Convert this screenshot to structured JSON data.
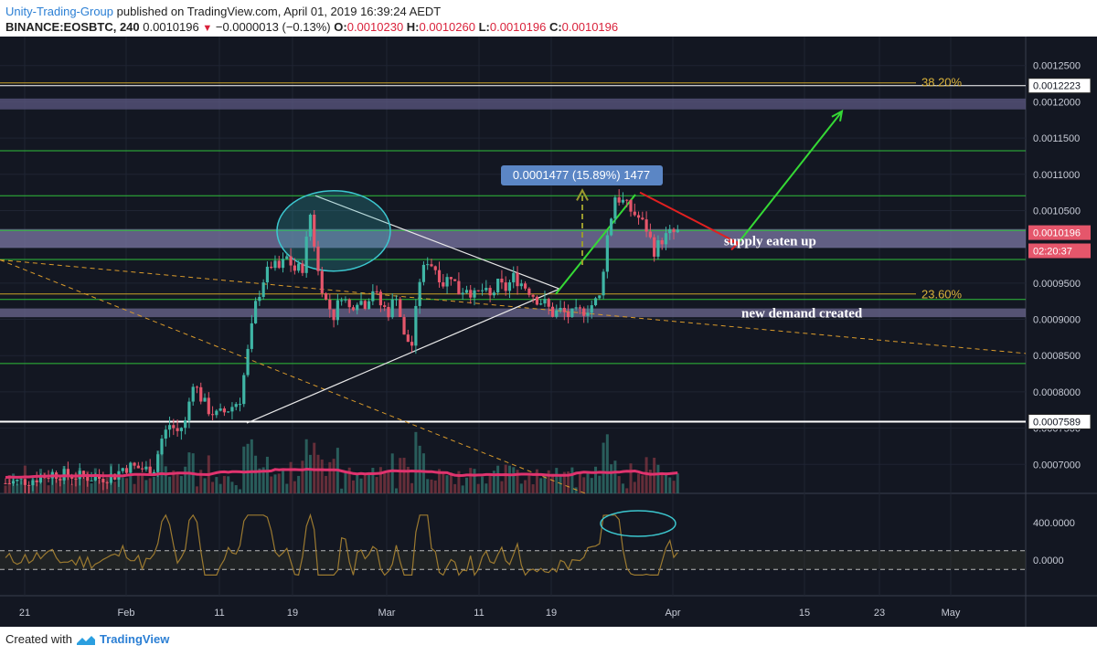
{
  "header": {
    "publisher": "Unity-Trading-Group",
    "published_text": "published on TradingView.com, April 01, 2019 16:39:24 AEDT",
    "symbol": "BINANCE:EOSBTC, 240",
    "last": "0.0010196",
    "change": "−0.0000013 (−0.13%)",
    "o_label": "O:",
    "o": "0.0010230",
    "h_label": "H:",
    "h": "0.0010260",
    "l_label": "L:",
    "l": "0.0010196",
    "c_label": "C:",
    "c": "0.0010196"
  },
  "footer": {
    "created_with": "Created with",
    "brand": "TradingView"
  },
  "chart_data": {
    "type": "candlestick",
    "symbol": "BINANCE:EOSBTC",
    "interval": "240",
    "x_ticks": [
      "21",
      "Feb",
      "11",
      "19",
      "Mar",
      "11",
      "19",
      "Apr",
      "15",
      "23",
      "May"
    ],
    "y_ticks": [
      "0.0012500",
      "0.0012000",
      "0.0011500",
      "0.0011000",
      "0.0010500",
      "0.0010000",
      "0.0009500",
      "0.0009000",
      "0.0008500",
      "0.0008000",
      "0.0007500",
      "0.0007000"
    ],
    "ylim": [
      0.00066,
      0.00129
    ],
    "price_labels": [
      {
        "text": "0.0012223",
        "value": 0.0012223,
        "style": "white"
      },
      {
        "text": "0.0010196",
        "value": 0.0010196,
        "style": "red"
      },
      {
        "text": "02:20:37",
        "value": 0.0009945,
        "style": "red"
      },
      {
        "text": "0.0007589",
        "value": 0.0007589,
        "style": "white"
      }
    ],
    "fib_levels": [
      {
        "label": "38.20%",
        "value": 0.0012223
      },
      {
        "label": "23.60%",
        "value": 0.000935
      }
    ],
    "support_resistance": [
      0.0011325,
      0.0010705,
      0.0010225,
      0.0009825,
      0.0009275,
      0.000839
    ],
    "zones": [
      {
        "from": 0.0011895,
        "to": 0.0012045,
        "color": "#5c5882"
      },
      {
        "from": 0.0009985,
        "to": 0.0010245,
        "color": "#7c78a6"
      },
      {
        "from": 0.000903,
        "to": 0.000915,
        "color": "#6c6890"
      }
    ],
    "annotations": [
      {
        "text": "0.0001477 (15.89%) 1477"
      },
      {
        "text": "supply eaten up"
      },
      {
        "text": "new demand created"
      }
    ],
    "price_path": [
      [
        0,
        0.000674
      ],
      [
        3,
        0.000678
      ],
      [
        6,
        0.000687
      ],
      [
        9,
        0.000684
      ],
      [
        12,
        0.000681
      ],
      [
        14,
        0.000685
      ],
      [
        15,
        0.000695
      ],
      [
        16,
        0.000697
      ],
      [
        18,
        0.000693
      ],
      [
        19,
        0.000695
      ],
      [
        20,
        0.000735
      ],
      [
        21,
        0.000755
      ],
      [
        22,
        0.000745
      ],
      [
        23,
        0.000758
      ],
      [
        24,
        0.000815
      ],
      [
        25,
        0.000792
      ],
      [
        26,
        0.000775
      ],
      [
        27,
        0.000768
      ],
      [
        28,
        0.000772
      ],
      [
        29,
        0.00078
      ],
      [
        30,
        0.00079
      ],
      [
        31,
        0.000855
      ],
      [
        32,
        0.00092
      ],
      [
        33,
        0.000955
      ],
      [
        34,
        0.000975
      ],
      [
        35,
        0.00097
      ],
      [
        36,
        0.000985
      ],
      [
        37,
        0.000968
      ],
      [
        38,
        0.000972
      ],
      [
        39,
        0.001045
      ],
      [
        40,
        0.000965
      ],
      [
        41,
        0.000925
      ],
      [
        42,
        0.000905
      ],
      [
        43,
        0.000935
      ],
      [
        44,
        0.000915
      ],
      [
        45,
        0.000928
      ],
      [
        46,
        0.000922
      ],
      [
        47,
        0.000942
      ],
      [
        48,
        0.00092
      ],
      [
        49,
        0.00091
      ],
      [
        50,
        0.000935
      ],
      [
        51,
        0.000875
      ],
      [
        52,
        0.000865
      ],
      [
        53,
        0.000955
      ],
      [
        54,
        0.000982
      ],
      [
        55,
        0.00097
      ],
      [
        56,
        0.00095
      ],
      [
        57,
        0.000962
      ],
      [
        58,
        0.000938
      ],
      [
        59,
        0.000945
      ],
      [
        60,
        0.000932
      ],
      [
        61,
        0.00094
      ],
      [
        62,
        0.00093
      ],
      [
        63,
        0.000948
      ],
      [
        64,
        0.000942
      ],
      [
        65,
        0.000958
      ],
      [
        66,
        0.00095
      ],
      [
        67,
        0.00094
      ],
      [
        68,
        0.000928
      ],
      [
        69,
        0.000922
      ],
      [
        70,
        0.000908
      ],
      [
        71,
        0.000912
      ],
      [
        72,
        0.000905
      ],
      [
        73,
        0.000908
      ],
      [
        74,
        0.000912
      ],
      [
        75,
        0.00092
      ],
      [
        76,
        0.00093
      ],
      [
        77,
        0.001015
      ],
      [
        78,
        0.00107
      ],
      [
        79,
        0.001062
      ],
      [
        80,
        0.00105
      ],
      [
        81,
        0.00104
      ],
      [
        82,
        0.001025
      ],
      [
        83,
        0.000995
      ],
      [
        84,
        0.00101
      ],
      [
        85,
        0.001018
      ],
      [
        86,
        0.00102
      ]
    ]
  }
}
